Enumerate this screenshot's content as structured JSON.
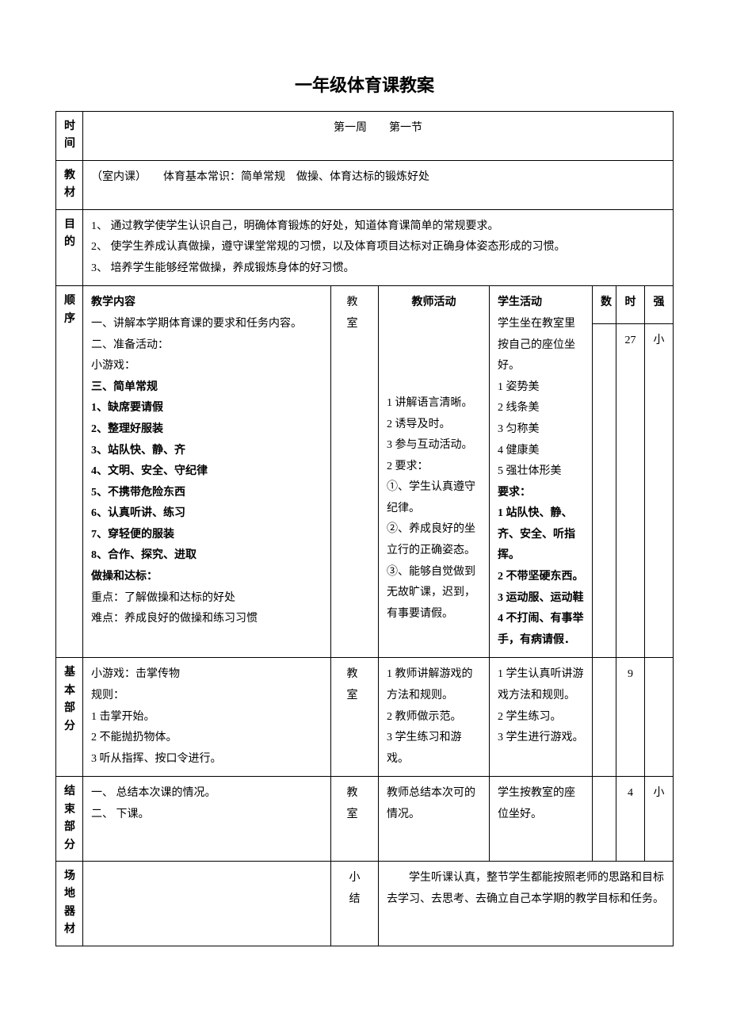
{
  "title": "一年级体育课教案",
  "rows": {
    "time": {
      "label": "时间",
      "value": "第一周　　第一节"
    },
    "material": {
      "label": "教材",
      "value": "（室内课）　　体育基本常识：简单常规　做操、体育达标的锻炼好处"
    },
    "purpose": {
      "label": "目的",
      "lines": [
        "1、 通过教学使学生认识自己，明确体育锻炼的好处，知道体育课简单的常规要求。",
        "2、 使学生养成认真做操，遵守课堂常规的习惯，以及体育项目达标对正确身体姿态形成的习惯。",
        "3、 培养学生能够经常做操，养成锻炼身体的好习惯。"
      ]
    }
  },
  "headers": {
    "teacher": "教师活动",
    "student": "学生活动",
    "count": "数",
    "time": "时",
    "intensity": "强"
  },
  "sequence": {
    "label": "顺序",
    "content_heading": "教学内容",
    "content_lines": [
      "一、讲解本学期体育课的要求和任务内容。",
      "二、准备活动：",
      "小游戏：",
      "<b>三、简单常规</b>",
      "<b>1、缺席要请假</b>",
      "<b>2、整理好服装</b>",
      "<b>3、站队快、静、齐</b>",
      "<b>4、文明、安全、守纪律</b>",
      "<b>5、不携带危险东西</b>",
      "<b>6、认真听讲、练习</b>",
      "<b>7、穿轻便的服装</b>",
      "<b>8、合作、探究、进取</b>",
      "<b>做操和达标：</b>",
      "重点：了解做操和达标的好处",
      "难点：养成良好的做操和练习习惯"
    ],
    "location": "教　室",
    "teacher_lines": [
      "1 讲解语言清晰。",
      "2 诱导及时。",
      "3 参与互动活动。",
      "2 要求：",
      "①、学生认真遵守纪律。",
      "②、养成良好的坐立行的正确姿态。",
      "③、能够自觉做到无故旷课，迟到，有事要请假。"
    ],
    "student_lines_pre": [
      "学生坐在教室里按自己的座位坐好。",
      "1 姿势美",
      "2 线条美",
      "3 匀称美",
      "4 健康美",
      "5 强壮体形美"
    ],
    "student_req_label": "要求：",
    "student_req_lines": [
      "1 站队快、静、齐、安全、听指挥。",
      "2 不带坚硬东西。",
      "3 运动服、运动鞋",
      "4 不打闹、有事举手，有病请假．"
    ],
    "count": "",
    "time": "27",
    "intensity": "小"
  },
  "basic": {
    "label": "基本部分",
    "content_lines": [
      "小游戏：击掌传物",
      "规则：",
      "1 击掌开始。",
      "2 不能抛扔物体。",
      "3 听从指挥、按口令进行。"
    ],
    "location": "教　室",
    "teacher_lines": [
      "1 教师讲解游戏的方法和规则。",
      "2 教师做示范。",
      "3 学生练习和游戏。"
    ],
    "student_lines": [
      "1 学生认真听讲游戏方法和规则。",
      "2 学生练习。",
      "3 学生进行游戏。"
    ],
    "count": "",
    "time": "9",
    "intensity": ""
  },
  "end": {
    "label": "结束部分",
    "content_lines": [
      "一、 总结本次课的情况。",
      "二、 下课。"
    ],
    "location": "教　室",
    "teacher_lines": [
      "教师总结本次可的情况。"
    ],
    "student_lines": [
      "学生按教室的座位坐好。"
    ],
    "count": "",
    "time": "4",
    "intensity": "小"
  },
  "venue": {
    "label": "场地器材",
    "content": "",
    "summary_label": "小结",
    "summary_text": "　　学生听课认真，整节学生都能按照老师的思路和目标去学习、去思考、去确立自己本学期的教学目标和任务。"
  }
}
